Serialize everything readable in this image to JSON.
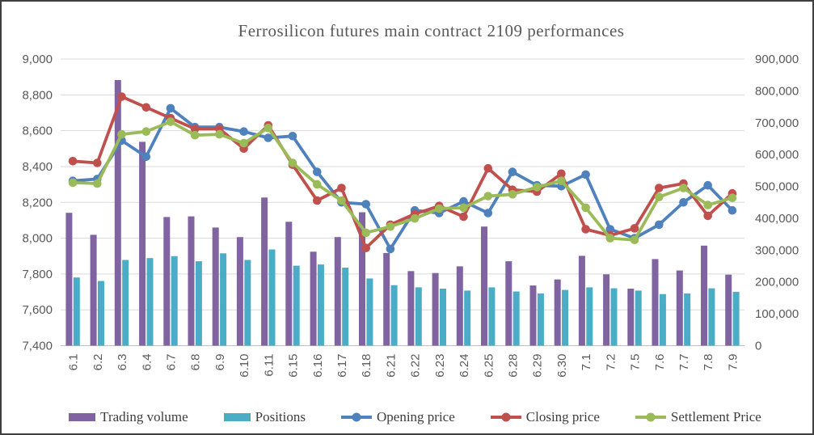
{
  "title": "Ferrosilicon futures main contract 2109 performances",
  "chart_data": {
    "type": "bar+line combo",
    "title": "Ferrosilicon futures main contract 2109 performances",
    "grid": true,
    "legend_position": "bottom",
    "categories": [
      "6.1",
      "6.2",
      "6.3",
      "6.4",
      "6.7",
      "6.8",
      "6.9",
      "6.10",
      "6.11",
      "6.15",
      "6.16",
      "6.17",
      "6.18",
      "6.21",
      "6.22",
      "6.23",
      "6.24",
      "6.25",
      "6.28",
      "6.29",
      "6.30",
      "7.1",
      "7.2",
      "7.5",
      "7.6",
      "7.7",
      "7.8",
      "7.9"
    ],
    "left_axis": {
      "min": 7400,
      "max": 9000,
      "step": 200,
      "labels": [
        "9,000",
        "8,800",
        "8,600",
        "8,400",
        "8,200",
        "8,000",
        "7,800",
        "7,600",
        "7,400"
      ]
    },
    "right_axis": {
      "min": 0,
      "max": 900000,
      "step": 100000,
      "labels": [
        "900,000",
        "800,000",
        "700,000",
        "600,000",
        "500,000",
        "400,000",
        "300,000",
        "200,000",
        "100,000",
        "0"
      ]
    },
    "series": [
      {
        "name": "Trading volume",
        "type": "bar",
        "axis": "right",
        "color": "#8064A2",
        "values": [
          417000,
          348000,
          834000,
          640000,
          404000,
          406000,
          371000,
          341000,
          465000,
          389000,
          295000,
          341000,
          419000,
          291000,
          234000,
          228000,
          249000,
          374000,
          265000,
          189000,
          208000,
          282000,
          224000,
          179000,
          272000,
          236000,
          314000,
          223000
        ]
      },
      {
        "name": "Positions",
        "type": "bar",
        "axis": "right",
        "color": "#4BACC6",
        "values": [
          214000,
          203000,
          269000,
          275000,
          281000,
          265000,
          290000,
          269000,
          302000,
          251000,
          255000,
          245000,
          211000,
          190000,
          183000,
          179000,
          173000,
          183000,
          170000,
          164000,
          175000,
          183000,
          180000,
          173000,
          162000,
          164000,
          180000,
          169000
        ]
      },
      {
        "name": "Opening price",
        "type": "line",
        "axis": "left",
        "color": "#4F81BD",
        "values": [
          8320,
          8330,
          8545,
          8455,
          8725,
          8620,
          8620,
          8595,
          8560,
          8570,
          8370,
          8200,
          8190,
          7940,
          8155,
          8140,
          8205,
          8140,
          8370,
          8295,
          8290,
          8355,
          8050,
          8000,
          8075,
          8200,
          8295,
          8155
        ]
      },
      {
        "name": "Closing price",
        "type": "line",
        "axis": "left",
        "color": "#C0504D",
        "values": [
          8430,
          8420,
          8790,
          8730,
          8670,
          8610,
          8610,
          8500,
          8630,
          8410,
          8210,
          8280,
          7945,
          8075,
          8135,
          8180,
          8120,
          8390,
          8270,
          8260,
          8360,
          8050,
          8015,
          8055,
          8280,
          8305,
          8125,
          8250
        ]
      },
      {
        "name": "Settlement Price",
        "type": "line",
        "axis": "left",
        "color": "#9BBB59",
        "values": [
          8310,
          8305,
          8580,
          8595,
          8650,
          8575,
          8580,
          8530,
          8615,
          8420,
          8300,
          8210,
          8030,
          8065,
          8110,
          8165,
          8170,
          8235,
          8245,
          8285,
          8320,
          8170,
          8000,
          7990,
          8230,
          8280,
          8185,
          8225
        ]
      }
    ],
    "style": {
      "gridline_color": "#D9D9D9",
      "axis_line_color": "#BFBFBF",
      "tick_label_color": "#595959",
      "title_color": "#595959"
    }
  }
}
